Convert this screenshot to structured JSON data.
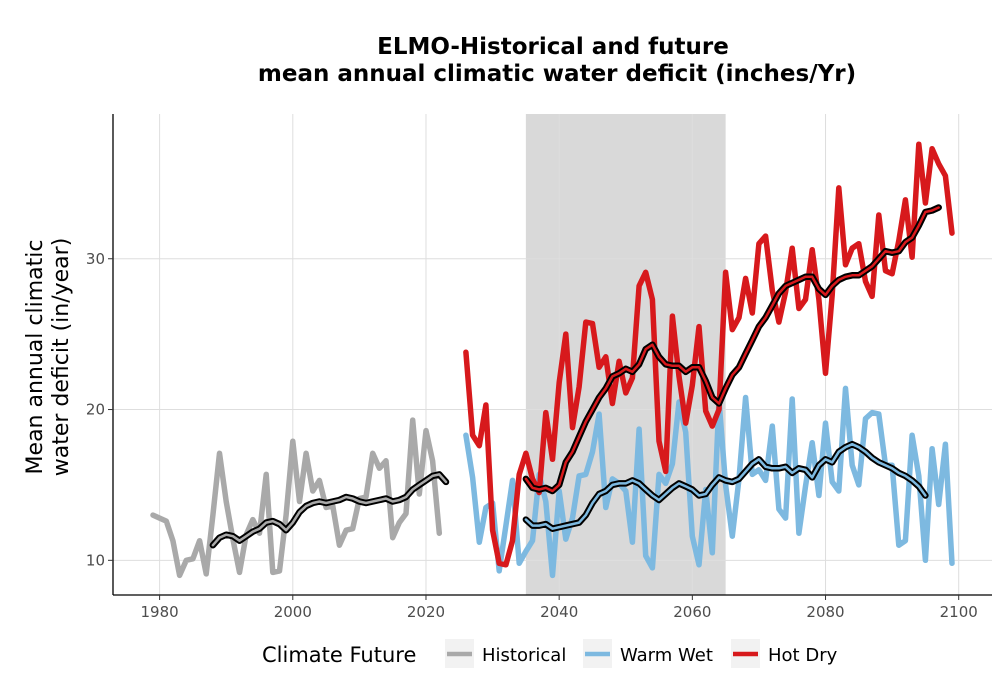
{
  "chart_data": {
    "type": "line",
    "title": [
      "ELMO-Historical and future",
      "mean annual climatic water deficit (inches/Yr)"
    ],
    "ylabel": [
      "Mean annual climatic",
      "water deficit (in/year)"
    ],
    "xlabel": "",
    "xlim": [
      1973,
      2105
    ],
    "ylim": [
      7.7,
      39.6
    ],
    "x_ticks": [
      1980,
      2000,
      2020,
      2040,
      2060,
      2080,
      2100
    ],
    "y_ticks": [
      10,
      20,
      30
    ],
    "grid": true,
    "shaded_period": [
      2035,
      2065
    ],
    "legend": {
      "title": "Climate Future",
      "position": "bottom",
      "entries": [
        "Historical",
        "Warm Wet",
        "Hot Dry"
      ]
    },
    "colors": {
      "Historical": "#a9a9a9",
      "Warm Wet": "#7db9e0",
      "Hot Dry": "#d7191c",
      "smooth": "#000000",
      "shade": "#d9d9d9"
    },
    "series": [
      {
        "name": "Historical",
        "x_start": 1979,
        "values": [
          13.0,
          12.8,
          12.6,
          11.3,
          9.0,
          10.0,
          10.1,
          11.3,
          9.1,
          13.0,
          17.1,
          13.9,
          11.4,
          9.2,
          11.7,
          12.7,
          11.8,
          15.7,
          9.2,
          9.3,
          13.0,
          17.9,
          13.9,
          17.1,
          14.6,
          15.3,
          13.5,
          13.6,
          11.0,
          12.0,
          12.1,
          14.1,
          14.2,
          17.1,
          16.1,
          16.6,
          11.5,
          12.5,
          13.1,
          19.3,
          14.4,
          18.6,
          16.6,
          11.8
        ]
      },
      {
        "name": "Warm Wet",
        "x_start": 2026,
        "values": [
          18.3,
          15.5,
          11.2,
          13.5,
          13.8,
          9.3,
          12.3,
          15.3,
          9.8,
          10.6,
          11.3,
          15.7,
          13.9,
          9.0,
          14.6,
          11.4,
          12.8,
          15.6,
          15.7,
          17.2,
          19.7,
          13.5,
          15.4,
          15.1,
          14.6,
          11.2,
          18.7,
          10.3,
          9.5,
          15.7,
          15.1,
          16.4,
          20.5,
          18.5,
          11.6,
          9.7,
          14.7,
          10.5,
          20.6,
          15.0,
          11.6,
          15.4,
          20.8,
          15.7,
          16.0,
          15.3,
          18.9,
          13.4,
          12.8,
          20.7,
          11.8,
          14.9,
          17.8,
          14.3,
          19.1,
          15.2,
          14.6,
          21.4,
          16.3,
          15.0,
          19.4,
          19.8,
          19.7,
          16.3,
          16.3,
          11.0,
          11.3,
          18.3,
          15.6,
          10.0,
          17.4,
          13.7,
          17.7,
          9.8
        ]
      },
      {
        "name": "Hot Dry",
        "x_start": 2026,
        "values": [
          23.8,
          18.3,
          17.6,
          20.3,
          12.0,
          9.8,
          9.7,
          11.3,
          15.7,
          17.1,
          15.4,
          14.5,
          19.8,
          16.7,
          21.8,
          25.0,
          18.8,
          21.5,
          25.8,
          25.7,
          22.8,
          23.5,
          20.4,
          23.2,
          21.1,
          22.1,
          28.2,
          29.1,
          27.3,
          17.9,
          15.9,
          26.2,
          22.2,
          19.1,
          21.6,
          25.5,
          19.9,
          18.9,
          20.0,
          29.1,
          25.3,
          26.1,
          28.7,
          26.4,
          31.0,
          31.5,
          27.9,
          25.8,
          27.8,
          30.7,
          26.7,
          27.3,
          30.6,
          27.3,
          22.4,
          27.6,
          34.7,
          29.6,
          30.7,
          31.0,
          28.5,
          27.5,
          32.9,
          29.2,
          29.0,
          31.2,
          33.9,
          30.1,
          37.6,
          33.7,
          37.3,
          36.3,
          35.5,
          31.7
        ]
      }
    ],
    "smoothed": [
      {
        "name": "Historical",
        "x_start": 1988,
        "values": [
          11.0,
          11.5,
          11.7,
          11.6,
          11.3,
          11.6,
          11.9,
          12.1,
          12.5,
          12.6,
          12.4,
          12.0,
          12.5,
          13.2,
          13.6,
          13.8,
          13.9,
          13.8,
          13.9,
          14.0,
          14.2,
          14.1,
          13.9,
          13.8,
          13.9,
          14.0,
          14.1,
          13.9,
          14.0,
          14.2,
          14.7,
          15.0,
          15.3,
          15.6,
          15.7,
          15.2
        ]
      },
      {
        "name": "Warm Wet",
        "x_start": 2035,
        "values": [
          12.7,
          12.3,
          12.3,
          12.4,
          12.1,
          12.2,
          12.3,
          12.4,
          12.5,
          13.0,
          13.8,
          14.4,
          14.6,
          15.0,
          15.1,
          15.1,
          15.3,
          15.1,
          14.7,
          14.3,
          14.0,
          14.4,
          14.8,
          15.1,
          14.9,
          14.7,
          14.3,
          14.4,
          15.0,
          15.5,
          15.3,
          15.2,
          15.4,
          15.9,
          16.4,
          16.7,
          16.2,
          16.1,
          16.1,
          16.2,
          15.8,
          16.1,
          16.0,
          15.5,
          16.3,
          16.7,
          16.5,
          17.2,
          17.5,
          17.7,
          17.5,
          17.2,
          16.8,
          16.5,
          16.3,
          16.1,
          15.8,
          15.6,
          15.3,
          14.9,
          14.3
        ]
      },
      {
        "name": "Hot Dry",
        "x_start": 2035,
        "values": [
          15.4,
          14.8,
          14.7,
          14.8,
          14.6,
          15.0,
          16.5,
          17.2,
          18.2,
          19.2,
          20.0,
          20.8,
          21.4,
          22.2,
          22.4,
          22.7,
          22.5,
          23.0,
          24.0,
          24.3,
          23.5,
          23.0,
          22.9,
          22.9,
          22.5,
          22.8,
          22.8,
          21.9,
          20.8,
          20.4,
          21.4,
          22.3,
          22.8,
          23.7,
          24.6,
          25.5,
          26.1,
          26.9,
          27.7,
          28.2,
          28.4,
          28.6,
          28.8,
          28.8,
          28.0,
          27.6,
          28.2,
          28.6,
          28.8,
          28.9,
          28.9,
          29.2,
          29.5,
          30.0,
          30.5,
          30.4,
          30.5,
          31.1,
          31.4,
          32.2,
          33.1,
          33.2,
          33.4
        ]
      }
    ]
  }
}
